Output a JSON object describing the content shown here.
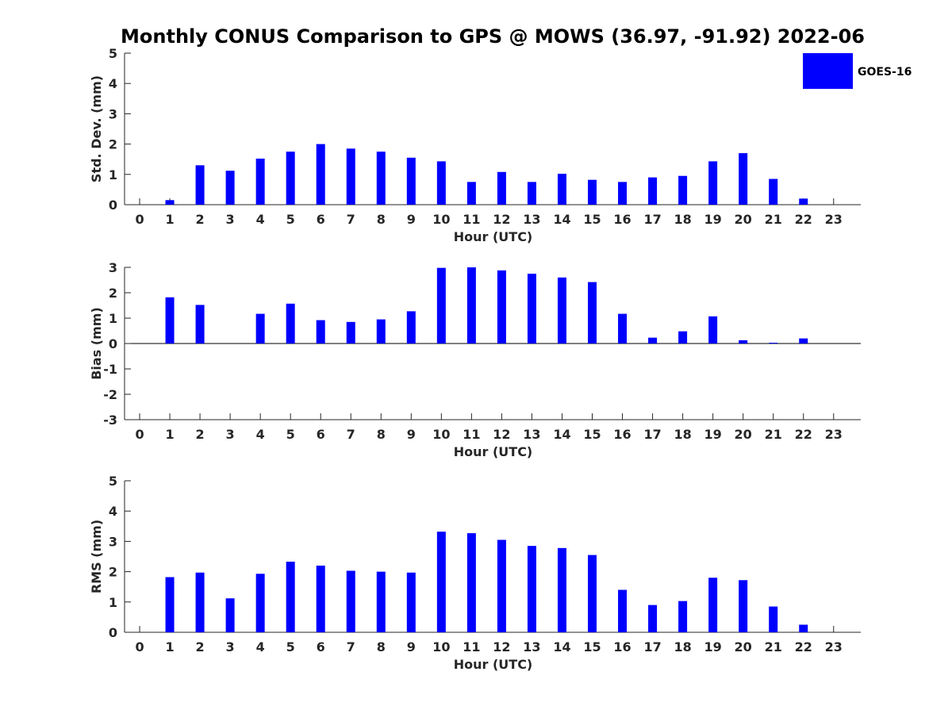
{
  "title": "Monthly CONUS Comparison to GPS @ MOWS (36.97, -91.92) 2022-06",
  "legend": {
    "label": "GOES-16",
    "color": "#0000ff",
    "placement": "top-right"
  },
  "chart_data": [
    {
      "type": "bar",
      "xlabel": "Hour (UTC)",
      "ylabel": "Std. Dev. (mm)",
      "ylim": [
        0,
        5
      ],
      "yticks": [
        "0",
        "1",
        "2",
        "3",
        "4",
        "5"
      ],
      "xlim": [
        -0.5,
        23.9
      ],
      "categories": [
        "0",
        "1",
        "2",
        "3",
        "4",
        "5",
        "6",
        "7",
        "8",
        "9",
        "10",
        "11",
        "12",
        "13",
        "14",
        "15",
        "16",
        "17",
        "18",
        "19",
        "20",
        "21",
        "22",
        "23"
      ],
      "series": [
        {
          "name": "GOES-16",
          "color": "#0000ff",
          "values": [
            0,
            0.15,
            1.3,
            1.12,
            1.52,
            1.75,
            2.0,
            1.85,
            1.75,
            1.55,
            1.43,
            0.75,
            1.08,
            0.75,
            1.02,
            0.82,
            0.75,
            0.9,
            0.95,
            1.43,
            1.7,
            0.85,
            0.2,
            0
          ]
        }
      ],
      "grid": false
    },
    {
      "type": "bar",
      "xlabel": "Hour (UTC)",
      "ylabel": "Bias (mm)",
      "ylim": [
        -3,
        3
      ],
      "yticks": [
        "-3",
        "-2",
        "-1",
        "0",
        "1",
        "2",
        "3"
      ],
      "xlim": [
        -0.5,
        23.9
      ],
      "categories": [
        "0",
        "1",
        "2",
        "3",
        "4",
        "5",
        "6",
        "7",
        "8",
        "9",
        "10",
        "11",
        "12",
        "13",
        "14",
        "15",
        "16",
        "17",
        "18",
        "19",
        "20",
        "21",
        "22",
        "23"
      ],
      "series": [
        {
          "name": "GOES-16",
          "color": "#0000ff",
          "values": [
            0,
            1.82,
            1.52,
            0,
            1.17,
            1.57,
            0.92,
            0.85,
            0.95,
            1.27,
            2.98,
            3.0,
            2.88,
            2.75,
            2.6,
            2.42,
            1.17,
            0.23,
            0.48,
            1.07,
            0.13,
            0.03,
            0.2,
            0
          ]
        }
      ],
      "grid": false
    },
    {
      "type": "bar",
      "xlabel": "Hour (UTC)",
      "ylabel": "RMS (mm)",
      "ylim": [
        0,
        5
      ],
      "yticks": [
        "0",
        "1",
        "2",
        "3",
        "4",
        "5"
      ],
      "xlim": [
        -0.5,
        23.9
      ],
      "categories": [
        "0",
        "1",
        "2",
        "3",
        "4",
        "5",
        "6",
        "7",
        "8",
        "9",
        "10",
        "11",
        "12",
        "13",
        "14",
        "15",
        "16",
        "17",
        "18",
        "19",
        "20",
        "21",
        "22",
        "23"
      ],
      "series": [
        {
          "name": "GOES-16",
          "color": "#0000ff",
          "values": [
            0,
            1.82,
            1.97,
            1.12,
            1.93,
            2.33,
            2.2,
            2.03,
            2.0,
            1.97,
            3.32,
            3.27,
            3.05,
            2.85,
            2.78,
            2.55,
            1.4,
            0.9,
            1.03,
            1.8,
            1.72,
            0.85,
            0.25,
            0
          ]
        }
      ],
      "grid": false
    }
  ]
}
